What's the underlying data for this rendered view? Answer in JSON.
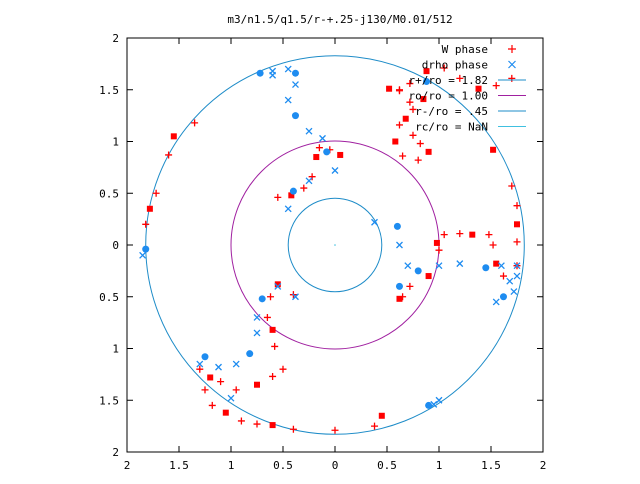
{
  "chart_data": {
    "type": "scatter",
    "title": "m3/n1.5/q1.5/r-+.25-j130/M0.01/512",
    "xlim": [
      -2,
      2
    ],
    "ylim": [
      -2,
      2
    ],
    "x_ticks": [
      "2",
      "1.5",
      "1",
      "0.5",
      "0",
      "0.5",
      "1",
      "1.5",
      "2"
    ],
    "y_ticks": [
      "2",
      "1.5",
      "1",
      "0.5",
      "0",
      "0.5",
      "1",
      "1.5",
      "2"
    ],
    "grid": false,
    "legend_position": "top-right",
    "series": [
      {
        "name": "W phase",
        "marker": "plus / filled square",
        "color": "#ff0000",
        "values": [
          {
            "x": 0.52,
            "y": 1.51
          },
          {
            "x": 0.62,
            "y": 1.49
          },
          {
            "x": 0.72,
            "y": 1.56
          },
          {
            "x": 0.88,
            "y": 1.68
          },
          {
            "x": 1.05,
            "y": 1.71
          },
          {
            "x": 1.2,
            "y": 1.61
          },
          {
            "x": 1.38,
            "y": 1.51
          },
          {
            "x": 1.55,
            "y": 1.54
          },
          {
            "x": 1.7,
            "y": 1.61
          },
          {
            "x": 0.85,
            "y": 1.41
          },
          {
            "x": 0.75,
            "y": 1.31
          },
          {
            "x": 0.62,
            "y": 1.16
          },
          {
            "x": 0.58,
            "y": 1.0
          },
          {
            "x": 0.65,
            "y": 0.86
          },
          {
            "x": 0.8,
            "y": 0.82
          },
          {
            "x": 0.9,
            "y": 0.9
          },
          {
            "x": 0.82,
            "y": 0.98
          },
          {
            "x": 0.75,
            "y": 1.06
          },
          {
            "x": 0.68,
            "y": 1.22
          },
          {
            "x": 0.72,
            "y": 1.38
          },
          {
            "x": 0.62,
            "y": 1.5
          },
          {
            "x": 0.05,
            "y": 0.87
          },
          {
            "x": -0.05,
            "y": 0.92
          },
          {
            "x": -0.15,
            "y": 0.94
          },
          {
            "x": -0.18,
            "y": 0.85
          },
          {
            "x": -0.22,
            "y": 0.66
          },
          {
            "x": -0.3,
            "y": 0.55
          },
          {
            "x": -0.42,
            "y": 0.48
          },
          {
            "x": -0.55,
            "y": 0.46
          },
          {
            "x": 1.0,
            "y": -0.05
          },
          {
            "x": 0.98,
            "y": 0.02
          },
          {
            "x": 1.05,
            "y": 0.1
          },
          {
            "x": 1.2,
            "y": 0.11
          },
          {
            "x": 1.32,
            "y": 0.1
          },
          {
            "x": 1.48,
            "y": 0.1
          },
          {
            "x": 1.52,
            "y": 0.0
          },
          {
            "x": 1.55,
            "y": -0.18
          },
          {
            "x": 1.62,
            "y": -0.3
          },
          {
            "x": 1.75,
            "y": -0.2
          },
          {
            "x": 0.9,
            "y": -0.3
          },
          {
            "x": 0.72,
            "y": -0.4
          },
          {
            "x": 0.65,
            "y": -0.5
          },
          {
            "x": 0.62,
            "y": -0.52
          },
          {
            "x": -0.5,
            "y": -1.2
          },
          {
            "x": -0.6,
            "y": -1.27
          },
          {
            "x": -0.75,
            "y": -1.35
          },
          {
            "x": -0.95,
            "y": -1.4
          },
          {
            "x": -1.1,
            "y": -1.32
          },
          {
            "x": -1.2,
            "y": -1.28
          },
          {
            "x": -1.25,
            "y": -1.4
          },
          {
            "x": -1.18,
            "y": -1.55
          },
          {
            "x": -1.05,
            "y": -1.62
          },
          {
            "x": -0.9,
            "y": -1.7
          },
          {
            "x": -0.75,
            "y": -1.73
          },
          {
            "x": -0.6,
            "y": -1.74
          },
          {
            "x": -0.4,
            "y": -1.78
          },
          {
            "x": -0.4,
            "y": -0.48
          },
          {
            "x": -0.55,
            "y": -0.38
          },
          {
            "x": -0.62,
            "y": -0.5
          },
          {
            "x": -0.65,
            "y": -0.7
          },
          {
            "x": -0.6,
            "y": -0.82
          },
          {
            "x": -0.58,
            "y": -0.98
          },
          {
            "x": -1.35,
            "y": 1.18
          },
          {
            "x": -1.55,
            "y": 1.05
          },
          {
            "x": -1.6,
            "y": 0.87
          },
          {
            "x": -1.72,
            "y": 0.5
          },
          {
            "x": -1.78,
            "y": 0.35
          },
          {
            "x": -1.82,
            "y": 0.2
          },
          {
            "x": -1.3,
            "y": -1.2
          },
          {
            "x": 0.45,
            "y": -1.65
          },
          {
            "x": 0.38,
            "y": -1.75
          },
          {
            "x": 0.0,
            "y": -1.79
          },
          {
            "x": 1.52,
            "y": 0.92
          },
          {
            "x": 1.7,
            "y": 0.57
          },
          {
            "x": 1.75,
            "y": 0.38
          },
          {
            "x": 1.75,
            "y": 0.2
          },
          {
            "x": 1.75,
            "y": 0.03
          }
        ]
      },
      {
        "name": "drho phase",
        "marker": "x / filled circle",
        "color": "#1e8cf0",
        "values": [
          {
            "x": -0.72,
            "y": 1.66
          },
          {
            "x": -0.6,
            "y": 1.68
          },
          {
            "x": -0.45,
            "y": 1.7
          },
          {
            "x": -0.38,
            "y": 1.66
          },
          {
            "x": -0.38,
            "y": 1.55
          },
          {
            "x": -0.45,
            "y": 1.4
          },
          {
            "x": -0.38,
            "y": 1.25
          },
          {
            "x": -0.25,
            "y": 1.1
          },
          {
            "x": -0.12,
            "y": 1.03
          },
          {
            "x": -0.08,
            "y": 0.9
          },
          {
            "x": 0.0,
            "y": 0.72
          },
          {
            "x": -0.25,
            "y": 0.62
          },
          {
            "x": -0.4,
            "y": 0.52
          },
          {
            "x": -0.45,
            "y": 0.35
          },
          {
            "x": 0.38,
            "y": 0.22
          },
          {
            "x": 0.6,
            "y": 0.18
          },
          {
            "x": 0.62,
            "y": 0.0
          },
          {
            "x": 0.7,
            "y": -0.2
          },
          {
            "x": 0.8,
            "y": -0.25
          },
          {
            "x": 1.0,
            "y": -0.2
          },
          {
            "x": 1.2,
            "y": -0.18
          },
          {
            "x": 1.45,
            "y": -0.22
          },
          {
            "x": 1.6,
            "y": -0.2
          },
          {
            "x": 1.68,
            "y": -0.35
          },
          {
            "x": 1.62,
            "y": -0.5
          },
          {
            "x": 1.55,
            "y": -0.55
          },
          {
            "x": 1.75,
            "y": -0.3
          },
          {
            "x": 0.62,
            "y": -0.4
          },
          {
            "x": -0.38,
            "y": -0.5
          },
          {
            "x": -0.55,
            "y": -0.4
          },
          {
            "x": -0.7,
            "y": -0.52
          },
          {
            "x": -0.75,
            "y": -0.7
          },
          {
            "x": -0.75,
            "y": -0.85
          },
          {
            "x": -0.82,
            "y": -1.05
          },
          {
            "x": -0.95,
            "y": -1.15
          },
          {
            "x": -1.12,
            "y": -1.18
          },
          {
            "x": -1.25,
            "y": -1.08
          },
          {
            "x": -1.3,
            "y": -1.15
          },
          {
            "x": -1.85,
            "y": -0.1
          },
          {
            "x": -1.82,
            "y": -0.04
          },
          {
            "x": -1.0,
            "y": -1.48
          },
          {
            "x": 0.95,
            "y": -1.54
          },
          {
            "x": 0.9,
            "y": -1.55
          },
          {
            "x": 1.0,
            "y": -1.5
          },
          {
            "x": -0.6,
            "y": 1.64
          },
          {
            "x": 0.88,
            "y": 1.58
          },
          {
            "x": 1.75,
            "y": -0.2
          },
          {
            "x": 1.72,
            "y": -0.45
          }
        ]
      },
      {
        "name": "r+/ro = 1.82",
        "type": "circle",
        "radius": 1.82,
        "color": "#1e8cc8"
      },
      {
        "name": "ro/ro = 1.00",
        "type": "circle",
        "radius": 1.0,
        "color": "#a020a0"
      },
      {
        "name": "r-/ro = .45",
        "type": "circle",
        "radius": 0.45,
        "color": "#1e8cc8"
      },
      {
        "name": "rc/ro = NaN",
        "type": "circle",
        "radius": null,
        "color": "#40c0e0"
      }
    ]
  }
}
